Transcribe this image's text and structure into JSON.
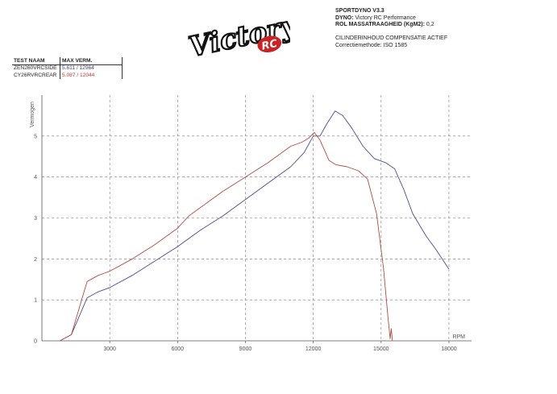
{
  "header": {
    "software": "SPORTDYNO V3.3",
    "dyno_label": "DYNO:",
    "dyno_value": "Victory RC Performance",
    "inertia_label": "ROL MASSATRAAGHEID (KgM2):",
    "inertia_value": "0,2",
    "compensation": "CILINDERINHOUD COMPENSATIE ACTIEF",
    "correction": "Correctiemethode: ISO 1585"
  },
  "logo": {
    "text_main": "Victory",
    "text_sub": "RC"
  },
  "legend_table": {
    "headers": [
      "TEST NAAM",
      "MAX VERM."
    ],
    "rows": [
      {
        "name": "ZEN260VRCSIDE",
        "max": "5.611 / 12964",
        "color": "#446"
      },
      {
        "name": "CY26RVRCREAR",
        "max": "5.087 / 12044",
        "color": "#c33"
      }
    ]
  },
  "colors": {
    "blue_series": "#4a4a8c",
    "red_series": "#b34a40",
    "grid": "#777777"
  },
  "chart_data": {
    "type": "line",
    "title": "",
    "xlabel": "RPM",
    "ylabel": "Vermogen",
    "xlim": [
      0,
      19000
    ],
    "ylim": [
      0,
      6
    ],
    "xticks": [
      3000,
      6000,
      9000,
      12000,
      15000,
      18000
    ],
    "yticks": [
      0,
      1,
      2,
      3,
      4,
      5
    ],
    "grid": true,
    "series": [
      {
        "name": "ZEN260VRCSIDE",
        "color": "#4a4a8c",
        "points": [
          [
            800,
            0
          ],
          [
            1300,
            0.15
          ],
          [
            2000,
            1.05
          ],
          [
            2500,
            1.2
          ],
          [
            3000,
            1.3
          ],
          [
            4000,
            1.6
          ],
          [
            5000,
            1.95
          ],
          [
            6000,
            2.3
          ],
          [
            7000,
            2.7
          ],
          [
            8000,
            3.05
          ],
          [
            9000,
            3.45
          ],
          [
            10000,
            3.85
          ],
          [
            11000,
            4.25
          ],
          [
            11600,
            4.6
          ],
          [
            12000,
            5.0
          ],
          [
            12300,
            5.0
          ],
          [
            12600,
            5.3
          ],
          [
            12964,
            5.611
          ],
          [
            13300,
            5.5
          ],
          [
            13700,
            5.2
          ],
          [
            14200,
            4.75
          ],
          [
            14700,
            4.45
          ],
          [
            15200,
            4.35
          ],
          [
            15600,
            4.2
          ],
          [
            16000,
            3.7
          ],
          [
            16400,
            3.1
          ],
          [
            17000,
            2.55
          ],
          [
            17400,
            2.25
          ],
          [
            17700,
            2.0
          ],
          [
            18000,
            1.75
          ]
        ]
      },
      {
        "name": "CY26RVRCREAR",
        "color": "#b34a40",
        "points": [
          [
            800,
            0
          ],
          [
            1300,
            0.15
          ],
          [
            2000,
            1.45
          ],
          [
            2500,
            1.6
          ],
          [
            3000,
            1.7
          ],
          [
            4000,
            2.0
          ],
          [
            5000,
            2.35
          ],
          [
            6000,
            2.75
          ],
          [
            6500,
            3.05
          ],
          [
            7000,
            3.25
          ],
          [
            8000,
            3.65
          ],
          [
            9000,
            4.0
          ],
          [
            10000,
            4.35
          ],
          [
            11000,
            4.75
          ],
          [
            11500,
            4.85
          ],
          [
            11800,
            4.95
          ],
          [
            12044,
            5.087
          ],
          [
            12300,
            4.9
          ],
          [
            12700,
            4.4
          ],
          [
            13000,
            4.3
          ],
          [
            13500,
            4.25
          ],
          [
            14000,
            4.15
          ],
          [
            14400,
            3.95
          ],
          [
            14800,
            3.1
          ],
          [
            15100,
            1.8
          ],
          [
            15300,
            0.6
          ],
          [
            15400,
            0.05
          ],
          [
            15450,
            0.3
          ],
          [
            15500,
            0.0
          ]
        ]
      }
    ]
  }
}
